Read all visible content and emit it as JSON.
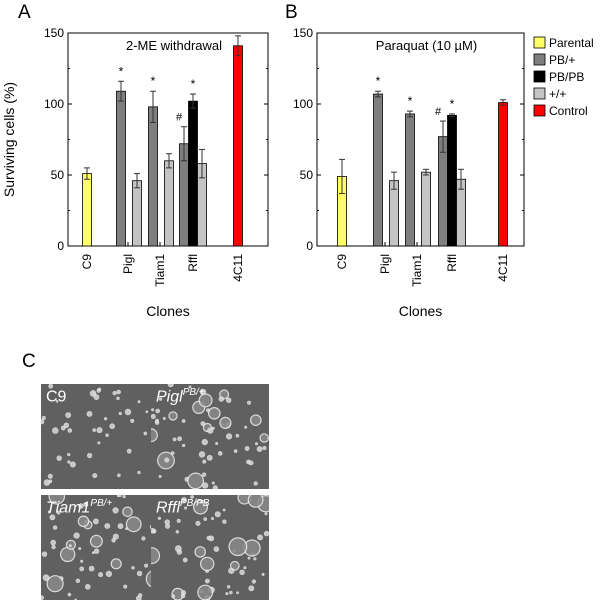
{
  "panels": {
    "A": "A",
    "B": "B",
    "C": "C"
  },
  "chart_data": [
    {
      "type": "bar",
      "panel": "A",
      "title": "2-ME withdrawal",
      "xlabel": "Clones",
      "ylabel": "Surviving cells (%)",
      "ylim": [
        0,
        150
      ],
      "yticks": [
        0,
        50,
        100,
        150
      ],
      "categories": [
        "C9",
        "Pigl",
        "Tiam1",
        "Rffl",
        "4C11"
      ],
      "bars": [
        {
          "category": "C9",
          "series": "Parental",
          "value": 51,
          "error": 4
        },
        {
          "category": "Pigl",
          "series": "PB/+",
          "value": 109,
          "error": 7,
          "marker": "*"
        },
        {
          "category": "Pigl",
          "series": "+/+",
          "value": 46,
          "error": 5
        },
        {
          "category": "Tiam1",
          "series": "PB/+",
          "value": 98,
          "error": 11,
          "marker": "*"
        },
        {
          "category": "Tiam1",
          "series": "+/+",
          "value": 60,
          "error": 5
        },
        {
          "category": "Rffl",
          "series": "PB/+",
          "value": 72,
          "error": 12,
          "marker": "#"
        },
        {
          "category": "Rffl",
          "series": "PB/PB",
          "value": 102,
          "error": 5,
          "marker": "*"
        },
        {
          "category": "Rffl",
          "series": "+/+",
          "value": 58,
          "error": 10
        },
        {
          "category": "4C11",
          "series": "Control",
          "value": 141,
          "error": 7
        }
      ]
    },
    {
      "type": "bar",
      "panel": "B",
      "title": "Paraquat (10 µM)",
      "xlabel": "Clones",
      "ylabel": "",
      "ylim": [
        0,
        150
      ],
      "yticks": [
        0,
        50,
        100,
        150
      ],
      "categories": [
        "C9",
        "Pigl",
        "Tiam1",
        "Rffl",
        "4C11"
      ],
      "bars": [
        {
          "category": "C9",
          "series": "Parental",
          "value": 49,
          "error": 12
        },
        {
          "category": "Pigl",
          "series": "PB/+",
          "value": 107,
          "error": 2,
          "marker": "*"
        },
        {
          "category": "Pigl",
          "series": "+/+",
          "value": 46,
          "error": 6
        },
        {
          "category": "Tiam1",
          "series": "PB/+",
          "value": 93,
          "error": 2,
          "marker": "*"
        },
        {
          "category": "Tiam1",
          "series": "+/+",
          "value": 52,
          "error": 2
        },
        {
          "category": "Rffl",
          "series": "PB/+",
          "value": 77,
          "error": 11,
          "marker": "#"
        },
        {
          "category": "Rffl",
          "series": "PB/PB",
          "value": 92,
          "error": 1,
          "marker": "*"
        },
        {
          "category": "Rffl",
          "series": "+/+",
          "value": 47,
          "error": 7
        },
        {
          "category": "4C11",
          "series": "Control",
          "value": 101,
          "error": 2
        }
      ]
    }
  ],
  "legend": {
    "position": "right",
    "items": [
      {
        "label": "Parental",
        "color": "#ffff66"
      },
      {
        "label": "PB/+",
        "color": "#7f7f7f"
      },
      {
        "label": "PB/PB",
        "color": "#000000"
      },
      {
        "label": "+/+",
        "color": "#c4c4c4"
      },
      {
        "label": "Control",
        "color": "#ff0000"
      }
    ]
  },
  "micrographs": [
    {
      "gene": "C9",
      "genotype": ""
    },
    {
      "gene": "Pigl",
      "genotype": "PB/+"
    },
    {
      "gene": "Tiam1",
      "genotype": "PB/+"
    },
    {
      "gene": "Rffl",
      "genotype": "PB/PB"
    }
  ]
}
